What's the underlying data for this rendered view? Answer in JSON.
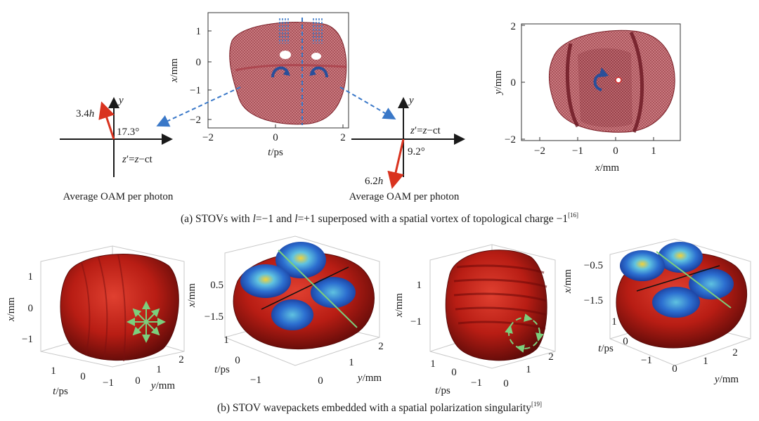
{
  "panel_a": {
    "caption_pre": "(a) STOVs with ",
    "caption_l1": "l",
    "caption_mid1": "=−1 and ",
    "caption_l2": "l",
    "caption_mid2": "=+1 superposed with a spatial vortex of topological charge −1",
    "caption_ref": "[16]",
    "plot1": {
      "xlabel_var": "t",
      "xlabel_unit": "/ps",
      "ylabel_var": "x",
      "ylabel_unit": "/mm",
      "xticks": [
        "−2",
        "0",
        "2"
      ],
      "yticks": [
        "1",
        "0",
        "−1",
        "−2"
      ]
    },
    "plot2": {
      "xlabel_var": "x",
      "xlabel_unit": "/mm",
      "ylabel_var": "y",
      "ylabel_unit": "/mm",
      "xticks": [
        "−2",
        "−1",
        "0",
        "1"
      ],
      "yticks": [
        "2",
        "0",
        "−2"
      ]
    },
    "oam_left": {
      "y_axis": "y",
      "z_label_z1": "z",
      "z_label_mid": "′=",
      "z_label_z2": "z",
      "z_label_ct": "−ct",
      "magnitude_num": "3.4",
      "magnitude_h": "h",
      "angle": "17.3°",
      "title": "Average OAM per photon"
    },
    "oam_right": {
      "y_axis": "y",
      "z_label_z1": "z",
      "z_label_mid": "′=",
      "z_label_z2": "z",
      "z_label_ct": "−ct",
      "magnitude_num": "6.2",
      "magnitude_h": "h",
      "angle": "9.2°",
      "title": "Average OAM per photon"
    }
  },
  "panel_b": {
    "caption": "(b) STOV wavepackets embedded with a spatial polarization singularity",
    "caption_ref": "[19]",
    "plot3": {
      "zlabel_var": "x",
      "zlabel_unit": "/mm",
      "t_label_var": "t",
      "t_label_unit": "/ps",
      "y_label_var": "y",
      "y_label_unit": "/mm",
      "zticks": [
        "1",
        "0",
        "−1"
      ],
      "tticks": [
        "1",
        "0",
        "−1"
      ],
      "yticks": [
        "0",
        "1",
        "2"
      ]
    },
    "plot4": {
      "zlabel_var": "x",
      "zlabel_unit": "/mm",
      "t_label_var": "t",
      "t_label_unit": "/ps",
      "y_label_var": "y",
      "y_label_unit": "/mm",
      "zticks": [
        "0.5",
        "−1.5"
      ],
      "tticks": [
        "1",
        "0",
        "−1"
      ],
      "yticks": [
        "0",
        "1",
        "2"
      ]
    },
    "plot5": {
      "zlabel_var": "x",
      "zlabel_unit": "/mm",
      "t_label_var": "t",
      "t_label_unit": "/ps",
      "y_label_var": "y",
      "y_label_unit": "/mm",
      "zticks": [
        "1",
        "−1"
      ],
      "tticks": [
        "1",
        "0",
        "−1"
      ],
      "yticks": [
        "0",
        "1",
        "2"
      ]
    },
    "plot6": {
      "zlabel_var": "x",
      "zlabel_unit": "/mm",
      "t_label_var": "t",
      "t_label_unit": "/ps",
      "y_label_var": "y",
      "y_label_unit": "/mm",
      "zticks": [
        "−0.5",
        "−1.5"
      ],
      "tticks": [
        "1",
        "0",
        "−1"
      ],
      "yticks": [
        "0",
        "1",
        "2"
      ]
    }
  },
  "colors": {
    "wavepacket_red": "#b81d14",
    "mesh_pink": "#c97a80",
    "mesh_dark": "#7a1f27",
    "vortex_blue": "#2a4f9a",
    "arrow_red": "#d9331f",
    "dashed_blue": "#3a78c8",
    "polarization_green": "#7ccf7c"
  }
}
